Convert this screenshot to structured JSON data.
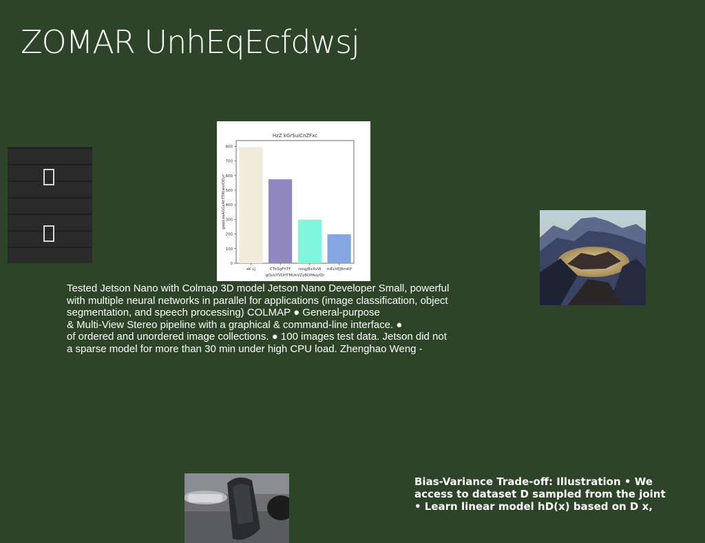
{
  "page": {
    "title": "ZOMAR UnhEqEcfdwsj",
    "background": "#2d4428"
  },
  "icons": {
    "thumb_top": "missing-glyph-icon",
    "thumb_bottom": "missing-glyph-icon"
  },
  "chart_data": {
    "type": "bar",
    "title": "HzZ kGrSuiCnZFxc",
    "xlabel": "gOvUYVDHTMUkVZyBDPAvpfZr",
    "ylabel": "gwpLoaAGGzAhTTRtwsrODyr",
    "categories": [
      "xK Lj",
      "CTkSgFhTF",
      "rsngjBxXvW",
      "mEzXEjBmKP"
    ],
    "values": [
      795,
      575,
      298,
      198
    ],
    "colors": [
      "#f2ebdb",
      "#9188c0",
      "#7ff5dc",
      "#86a6e2"
    ],
    "ylim": [
      0,
      840
    ],
    "yticks": [
      0,
      100,
      200,
      300,
      400,
      500,
      600,
      700,
      800
    ],
    "grid": false
  },
  "paragraph": {
    "lines": [
      "Tested Jetson Nano with Colmap 3D model Jetson Nano Developer Small, powerful",
      "with multiple neural networks in parallel for applications (image classification, object",
      "segmentation, and speech processing) COLMAP ● General-purpose",
      "& Multi-View Stereo pipeline with a graphical & command-line interface. ●",
      "of ordered and unordered image collections. ● 100 images test data. Jetson did not",
      "a sparse model for more than 30 min under high CPU load. Zhenghao Weng -"
    ]
  },
  "bias_text": {
    "lines": [
      "Bias-Variance Trade-off: Illustration • We",
      "access to dataset D sampled from the joint",
      "• Learn linear model hD(x) based on D x,"
    ]
  }
}
